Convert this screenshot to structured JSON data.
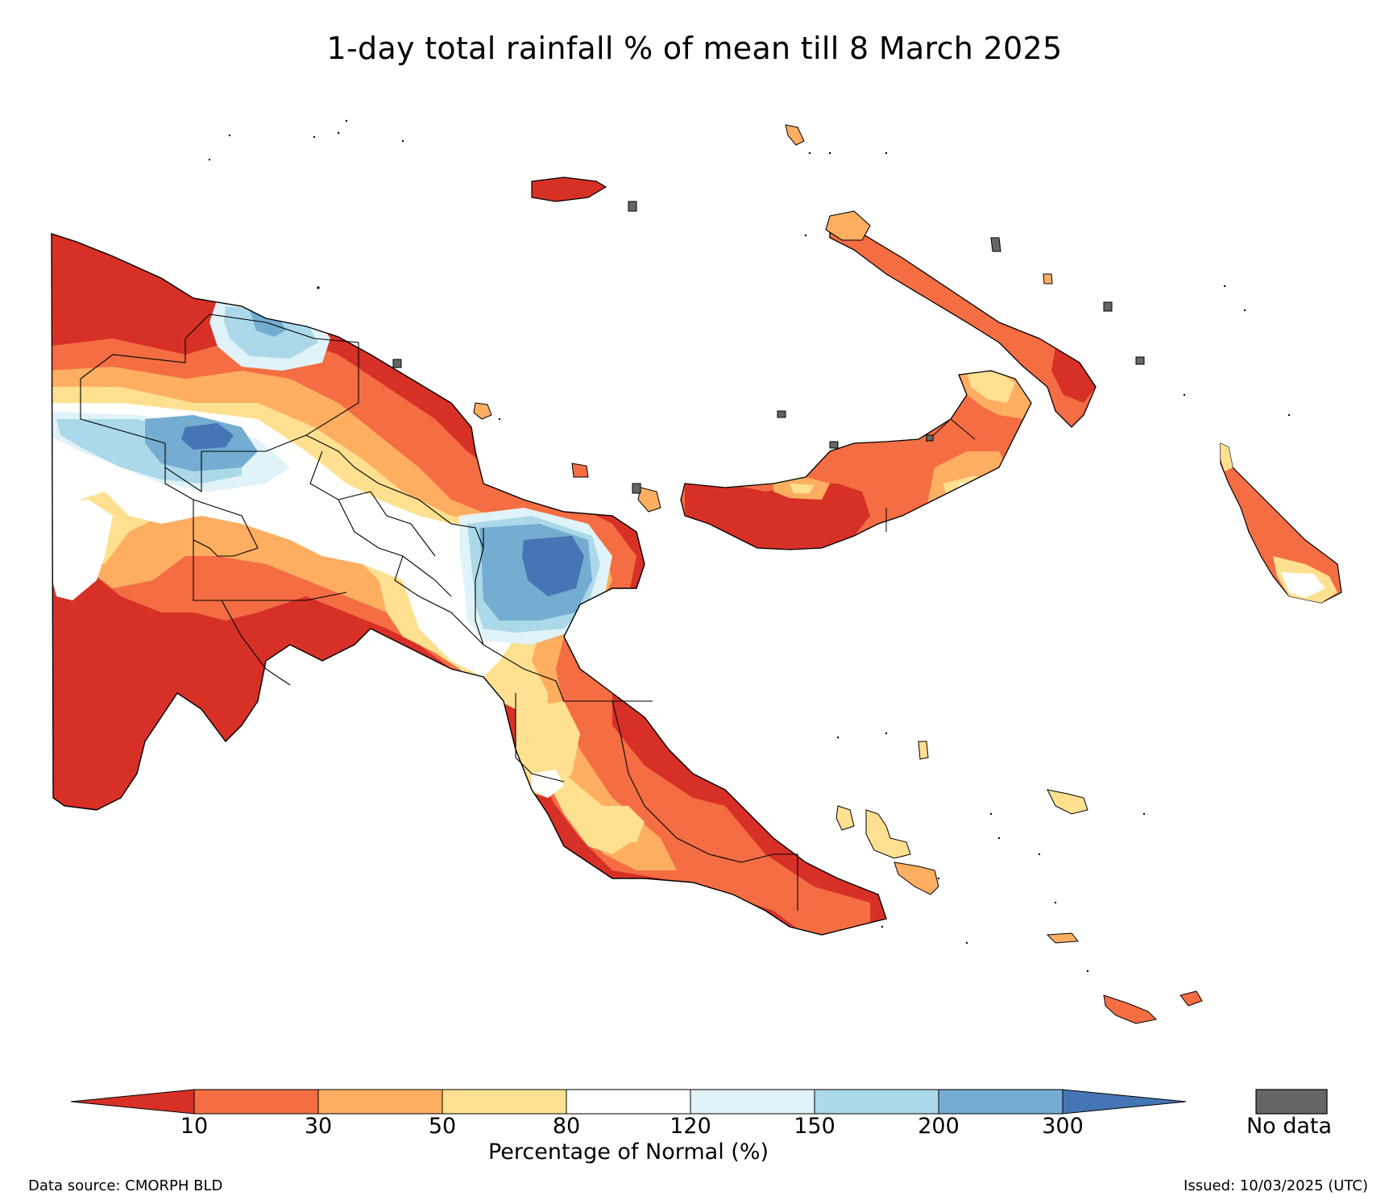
{
  "title": "1-day total rainfall % of mean till 8 March 2025",
  "legend": {
    "categories": [
      {
        "label": "< 10",
        "color": "#d73027"
      },
      {
        "label": "10 – 30",
        "color": "#f46d43"
      },
      {
        "label": "30 – 50",
        "color": "#fdae61"
      },
      {
        "label": "50 – 80",
        "color": "#fee090"
      },
      {
        "label": "80 – 120",
        "color": "#ffffff"
      },
      {
        "label": "120 – 150",
        "color": "#e0f3f8"
      },
      {
        "label": "150 – 200",
        "color": "#abd9e9"
      },
      {
        "label": "200 – 300",
        "color": "#74add1"
      },
      {
        "label": "> 300",
        "color": "#4575b4"
      }
    ],
    "ticks": [
      "10",
      "30",
      "50",
      "80",
      "120",
      "150",
      "200",
      "300"
    ],
    "axis_title": "Percentage of Normal (%)",
    "no_data_label": "No data",
    "no_data_color": "#666666"
  },
  "footer": {
    "source": "Data source: CMORPH BLD",
    "issued": "Issued: 10/03/2025 (UTC)"
  },
  "map_colors": {
    "c10": "#d73027",
    "c30": "#f46d43",
    "c50": "#fdae61",
    "c80": "#fee090",
    "c120": "#ffffff",
    "c150": "#e0f3f8",
    "c200": "#abd9e9",
    "c300": "#74add1",
    "c300p": "#4575b4",
    "nodata": "#666666"
  }
}
